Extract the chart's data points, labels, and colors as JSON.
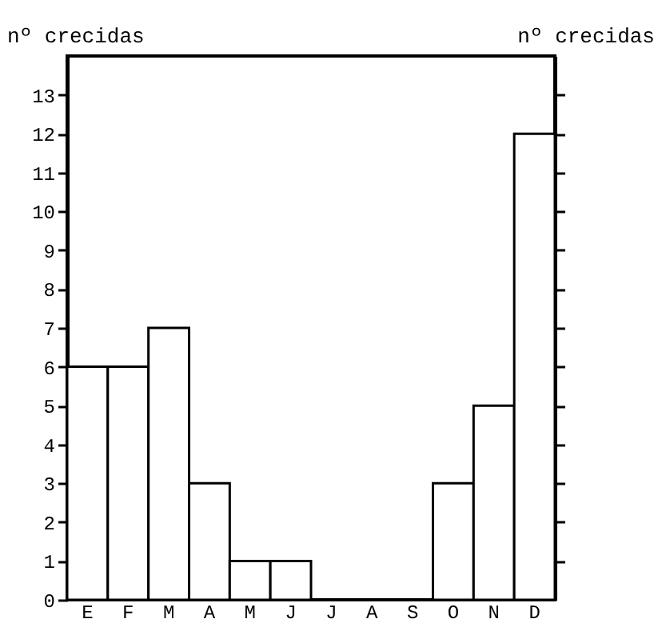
{
  "chart_data": {
    "type": "bar",
    "ylabel": "nº crecidas",
    "y2label": "nº crecidas",
    "categories": [
      "E",
      "F",
      "M",
      "A",
      "M",
      "J",
      "J",
      "A",
      "S",
      "O",
      "N",
      "D"
    ],
    "values": [
      6,
      6,
      7,
      3,
      1,
      1,
      0,
      0,
      0,
      3,
      5,
      12
    ],
    "color": "#ffffff",
    "ylim": [
      0,
      14
    ],
    "yticks": [
      0,
      1,
      2,
      3,
      4,
      5,
      6,
      7,
      8,
      9,
      10,
      11,
      12,
      13
    ],
    "grid": false
  }
}
